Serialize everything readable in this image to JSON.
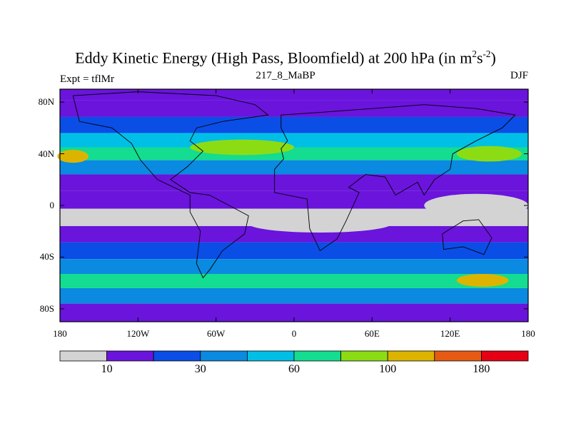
{
  "chart_data": {
    "type": "heatmap",
    "title": "Eddy Kinetic Energy (High Pass, Bloomfield) at 200 hPa (in m²s⁻²)",
    "title_main": "Eddy Kinetic Energy (High Pass, Bloomfield) at 200 hPa (in m",
    "title_sup1": "2",
    "title_s": "s",
    "title_sup2": "-2",
    "title_close": ")",
    "subtitle": "217_8_MaBP",
    "left_label": "Expt = tflMr",
    "right_label": "DJF",
    "x_tick_labels": [
      "180",
      "120W",
      "60W",
      "0",
      "60E",
      "120E",
      "180"
    ],
    "x_tick_values": [
      -180,
      -120,
      -60,
      0,
      60,
      120,
      180
    ],
    "y_tick_labels": [
      "80N",
      "40N",
      "0",
      "40S",
      "80S"
    ],
    "y_tick_values": [
      80,
      40,
      0,
      -40,
      -80
    ],
    "xlim": [
      -180,
      180
    ],
    "ylim": [
      -90,
      90
    ],
    "colorbar": {
      "levels": [
        10,
        20,
        30,
        45,
        60,
        80,
        100,
        140,
        180
      ],
      "tick_labels": [
        "10",
        "30",
        "60",
        "100",
        "180"
      ],
      "colors": [
        "#d3d3d3",
        "#6a14dc",
        "#0a4ee6",
        "#0a8ae0",
        "#00bfe6",
        "#14dc90",
        "#8cdc14",
        "#dcb400",
        "#e65a14",
        "#e60014"
      ]
    },
    "zonal_profile": [
      {
        "lat": 88,
        "value": 12
      },
      {
        "lat": 75,
        "value": 15
      },
      {
        "lat": 62,
        "value": 28
      },
      {
        "lat": 50,
        "value": 50
      },
      {
        "lat": 40,
        "value": 75
      },
      {
        "lat": 30,
        "value": 38
      },
      {
        "lat": 18,
        "value": 18
      },
      {
        "lat": 5,
        "value": 12
      },
      {
        "lat": -10,
        "value": 8
      },
      {
        "lat": -22,
        "value": 12
      },
      {
        "lat": -35,
        "value": 22
      },
      {
        "lat": -48,
        "value": 40
      },
      {
        "lat": -58,
        "value": 60
      },
      {
        "lat": -70,
        "value": 30
      },
      {
        "lat": -82,
        "value": 12
      }
    ]
  }
}
